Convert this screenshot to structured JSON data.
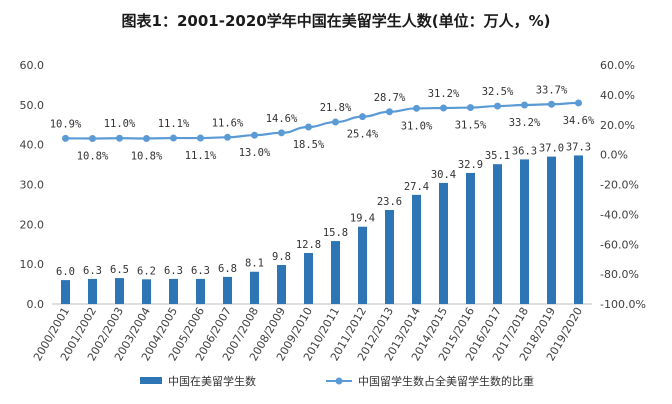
{
  "colors": {
    "bar": "#2E75B6",
    "line": "#5B9BD5",
    "axis": "#bfbfbf",
    "text": "#404040"
  },
  "chart_data": {
    "type": "bar",
    "title": "图表1：2001-2020学年中国在美留学生人数(单位：万人，%)",
    "categories": [
      "2000/2001",
      "2001/2002",
      "2002/2003",
      "2003/2004",
      "2004/2005",
      "2005/2006",
      "2006/2007",
      "2007/2008",
      "2008/2009",
      "2009/2010",
      "2010/2011",
      "2011/2012",
      "2012/2013",
      "2013/2014",
      "2014/2015",
      "2015/2016",
      "2016/2017",
      "2017/2018",
      "2018/2019",
      "2019/2020"
    ],
    "y_left": {
      "min": 0,
      "max": 60,
      "ticks": [
        "0.0",
        "10.0",
        "20.0",
        "30.0",
        "40.0",
        "50.0",
        "60.0"
      ]
    },
    "y_right": {
      "min": -100,
      "max": 60,
      "ticks": [
        "-100.0%",
        "-80.0%",
        "-60.0%",
        "-40.0%",
        "-20.0%",
        "0.0%",
        "20.0%",
        "40.0%",
        "60.0%"
      ]
    },
    "legend_position": "bottom",
    "series": [
      {
        "name": "中国在美留学生数",
        "type": "bar",
        "axis": "left",
        "values": [
          6.0,
          6.3,
          6.5,
          6.2,
          6.3,
          6.3,
          6.8,
          8.1,
          9.8,
          12.8,
          15.8,
          19.4,
          23.6,
          27.4,
          30.4,
          32.9,
          35.1,
          36.3,
          37.0,
          37.3
        ],
        "labels": [
          "6.0",
          "6.3",
          "6.5",
          "6.2",
          "6.3",
          "6.3",
          "6.8",
          "8.1",
          "9.8",
          "12.8",
          "15.8",
          "19.4",
          "23.6",
          "27.4",
          "30.4",
          "32.9",
          "35.1",
          "36.3",
          "37.0",
          "37.3"
        ]
      },
      {
        "name": "中国留学生数占全美留学生数的比重",
        "type": "line",
        "axis": "right",
        "values": [
          10.9,
          10.8,
          11.0,
          10.8,
          11.1,
          11.1,
          11.6,
          13.0,
          14.6,
          18.5,
          21.8,
          25.4,
          28.7,
          31.0,
          31.2,
          31.5,
          32.5,
          33.2,
          33.7,
          34.6
        ],
        "labels": [
          "10.9%",
          "10.8%",
          "11.0%",
          "10.8%",
          "11.1%",
          "11.1%",
          "11.6%",
          "13.0%",
          "14.6%",
          "18.5%",
          "21.8%",
          "25.4%",
          "28.7%",
          "31.0%",
          "31.2%",
          "31.5%",
          "32.5%",
          "33.2%",
          "33.7%",
          "34.6%"
        ],
        "label_side": [
          "above",
          "below",
          "above",
          "below",
          "above",
          "below",
          "above",
          "below",
          "above",
          "below",
          "above",
          "below",
          "above",
          "below",
          "above",
          "below",
          "above",
          "below",
          "above",
          "below"
        ]
      }
    ]
  }
}
